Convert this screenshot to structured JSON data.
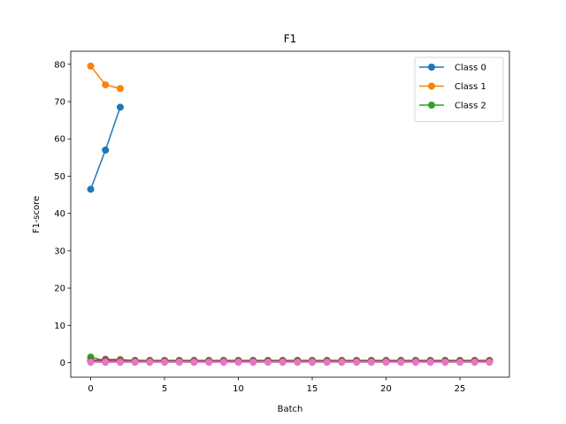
{
  "chart_data": {
    "type": "line",
    "title": "F1",
    "xlabel": "Batch",
    "ylabel": "F1-score",
    "xlim": [
      -1.35,
      28.35
    ],
    "ylim": [
      -3.9,
      83.5
    ],
    "xticks": [
      0,
      5,
      10,
      15,
      20,
      25
    ],
    "yticks": [
      0,
      10,
      20,
      30,
      40,
      50,
      60,
      70,
      80
    ],
    "grid": false,
    "legend_position": "top-right",
    "series": [
      {
        "name": "Class 0",
        "color": "#1f77b4",
        "legend": true,
        "x": [
          0,
          1,
          2
        ],
        "y": [
          46.5,
          57.0,
          68.5
        ]
      },
      {
        "name": "Class 1",
        "color": "#ff7f0e",
        "legend": true,
        "x": [
          0,
          1,
          2
        ],
        "y": [
          79.5,
          74.5,
          73.5
        ]
      },
      {
        "name": "Class 2",
        "color": "#2ca02c",
        "legend": true,
        "x": [
          0,
          1,
          2
        ],
        "y": [
          1.5,
          0.5,
          0.5
        ]
      },
      {
        "color": "#d62728",
        "legend": false,
        "x": [
          0,
          1,
          2,
          3,
          4,
          5,
          6,
          7,
          8,
          9,
          10,
          11,
          12,
          13,
          14,
          15,
          16,
          17,
          18,
          19,
          20,
          21,
          22,
          23,
          24,
          25,
          26,
          27
        ],
        "y": [
          0.5,
          0.5,
          0.5,
          0.5,
          0.5,
          0.5,
          0.5,
          0.5,
          0.5,
          0.5,
          0.5,
          0.5,
          0.5,
          0.5,
          0.5,
          0.5,
          0.5,
          0.5,
          0.5,
          0.5,
          0.5,
          0.5,
          0.5,
          0.5,
          0.5,
          0.5,
          0.5,
          0.5
        ]
      },
      {
        "color": "#9467bd",
        "legend": false,
        "x": [
          0,
          1,
          2,
          3,
          4,
          5,
          6,
          7,
          8,
          9,
          10,
          11,
          12,
          13,
          14,
          15,
          16,
          17,
          18,
          19,
          20,
          21,
          22,
          23,
          24,
          25,
          26,
          27
        ],
        "y": [
          0.3,
          0.3,
          0.3,
          0.3,
          0.3,
          0.3,
          0.3,
          0.3,
          0.3,
          0.3,
          0.3,
          0.3,
          0.3,
          0.3,
          0.3,
          0.3,
          0.3,
          0.3,
          0.3,
          0.3,
          0.3,
          0.3,
          0.3,
          0.3,
          0.3,
          0.3,
          0.3,
          0.3
        ]
      },
      {
        "color": "#8c564b",
        "legend": false,
        "x": [
          0,
          1,
          2,
          3,
          4,
          5,
          6,
          7,
          8,
          9,
          10,
          11,
          12,
          13,
          14,
          15,
          16,
          17,
          18,
          19,
          20,
          21,
          22,
          23,
          24,
          25,
          26,
          27
        ],
        "y": [
          0.6,
          0.9,
          0.8,
          0.6,
          0.6,
          0.6,
          0.6,
          0.6,
          0.6,
          0.6,
          0.6,
          0.6,
          0.6,
          0.6,
          0.6,
          0.6,
          0.6,
          0.6,
          0.6,
          0.6,
          0.6,
          0.6,
          0.6,
          0.6,
          0.6,
          0.6,
          0.6,
          0.6
        ]
      },
      {
        "color": "#e377c2",
        "legend": false,
        "x": [
          0,
          1,
          2,
          3,
          4,
          5,
          6,
          7,
          8,
          9,
          10,
          11,
          12,
          13,
          14,
          15,
          16,
          17,
          18,
          19,
          20,
          21,
          22,
          23,
          24,
          25,
          26,
          27
        ],
        "y": [
          0.1,
          0.1,
          0.1,
          0.1,
          0.1,
          0.1,
          0.1,
          0.1,
          0.1,
          0.1,
          0.1,
          0.1,
          0.1,
          0.1,
          0.1,
          0.1,
          0.1,
          0.1,
          0.1,
          0.1,
          0.1,
          0.1,
          0.1,
          0.1,
          0.1,
          0.1,
          0.1,
          0.1
        ]
      }
    ]
  }
}
